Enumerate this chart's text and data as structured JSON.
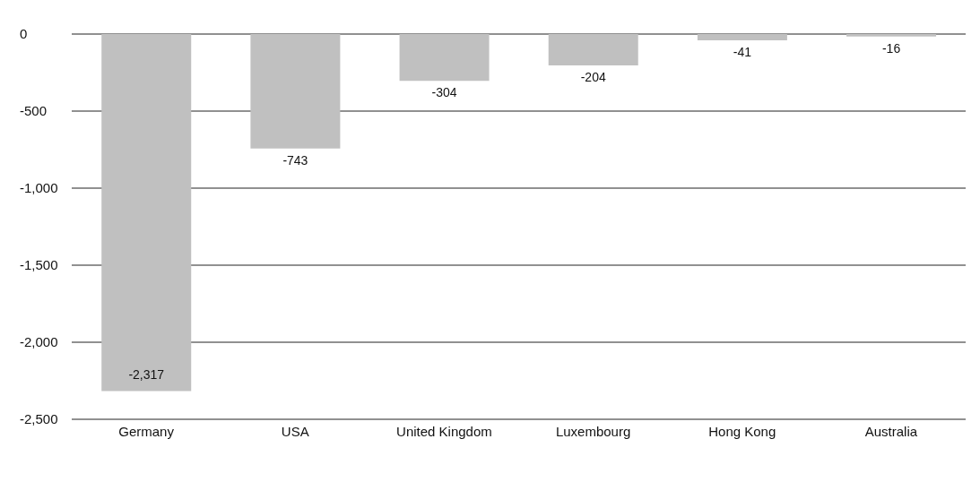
{
  "chart_data": {
    "type": "bar",
    "categories": [
      "Germany",
      "USA",
      "United Kingdom",
      "Luxembourg",
      "Hong Kong",
      "Australia"
    ],
    "values": [
      -2317,
      -743,
      -304,
      -204,
      -41,
      -16
    ],
    "color": "#c0c0c0",
    "ylim": [
      -2500,
      0
    ],
    "yticks": [
      {
        "value": -2500,
        "label": "-2,500"
      },
      {
        "value": -2000,
        "label": "-2,000"
      },
      {
        "value": -1500,
        "label": "-1,500"
      },
      {
        "value": -1000,
        "label": "-1,000"
      },
      {
        "value": -500,
        "label": "-500"
      },
      0
    ],
    "value_labels": [
      "-2,317",
      "-743",
      "-304",
      "-204",
      "-41",
      "-16"
    ],
    "grid": "y"
  }
}
